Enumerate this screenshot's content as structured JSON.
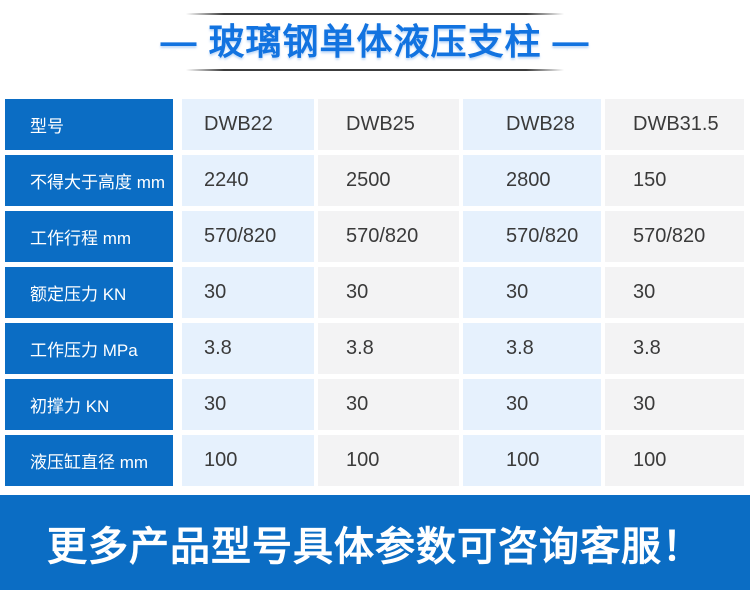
{
  "header": {
    "title": "— 玻璃钢单体液压支柱 —"
  },
  "table": {
    "row_header_label": "型号",
    "columns": [
      "DWB22",
      "DWB25",
      "DWB28",
      "DWB31.5"
    ],
    "rows": [
      {
        "label": "不得大于高度 mm",
        "values": [
          "2240",
          "2500",
          "2800",
          "150"
        ]
      },
      {
        "label": "工作行程 mm",
        "values": [
          "570/820",
          "570/820",
          "570/820",
          "570/820"
        ]
      },
      {
        "label": "额定压力 KN",
        "values": [
          "30",
          "30",
          "30",
          "30"
        ]
      },
      {
        "label": "工作压力 MPa",
        "values": [
          "3.8",
          "3.8",
          "3.8",
          "3.8"
        ]
      },
      {
        "label": "初撑力 KN",
        "values": [
          "30",
          "30",
          "30",
          "30"
        ]
      },
      {
        "label": "液压缸直径 mm",
        "values": [
          "100",
          "100",
          "100",
          "100"
        ]
      }
    ]
  },
  "footer": {
    "notice": "更多产品型号具体参数可咨询客服！"
  },
  "colors": {
    "primary_blue": "#0b6dc4",
    "title_blue": "#1273e0",
    "light_blue_cell": "#e6f1fd",
    "light_gray_cell": "#f3f3f4",
    "value_text": "#3a3a3a"
  }
}
